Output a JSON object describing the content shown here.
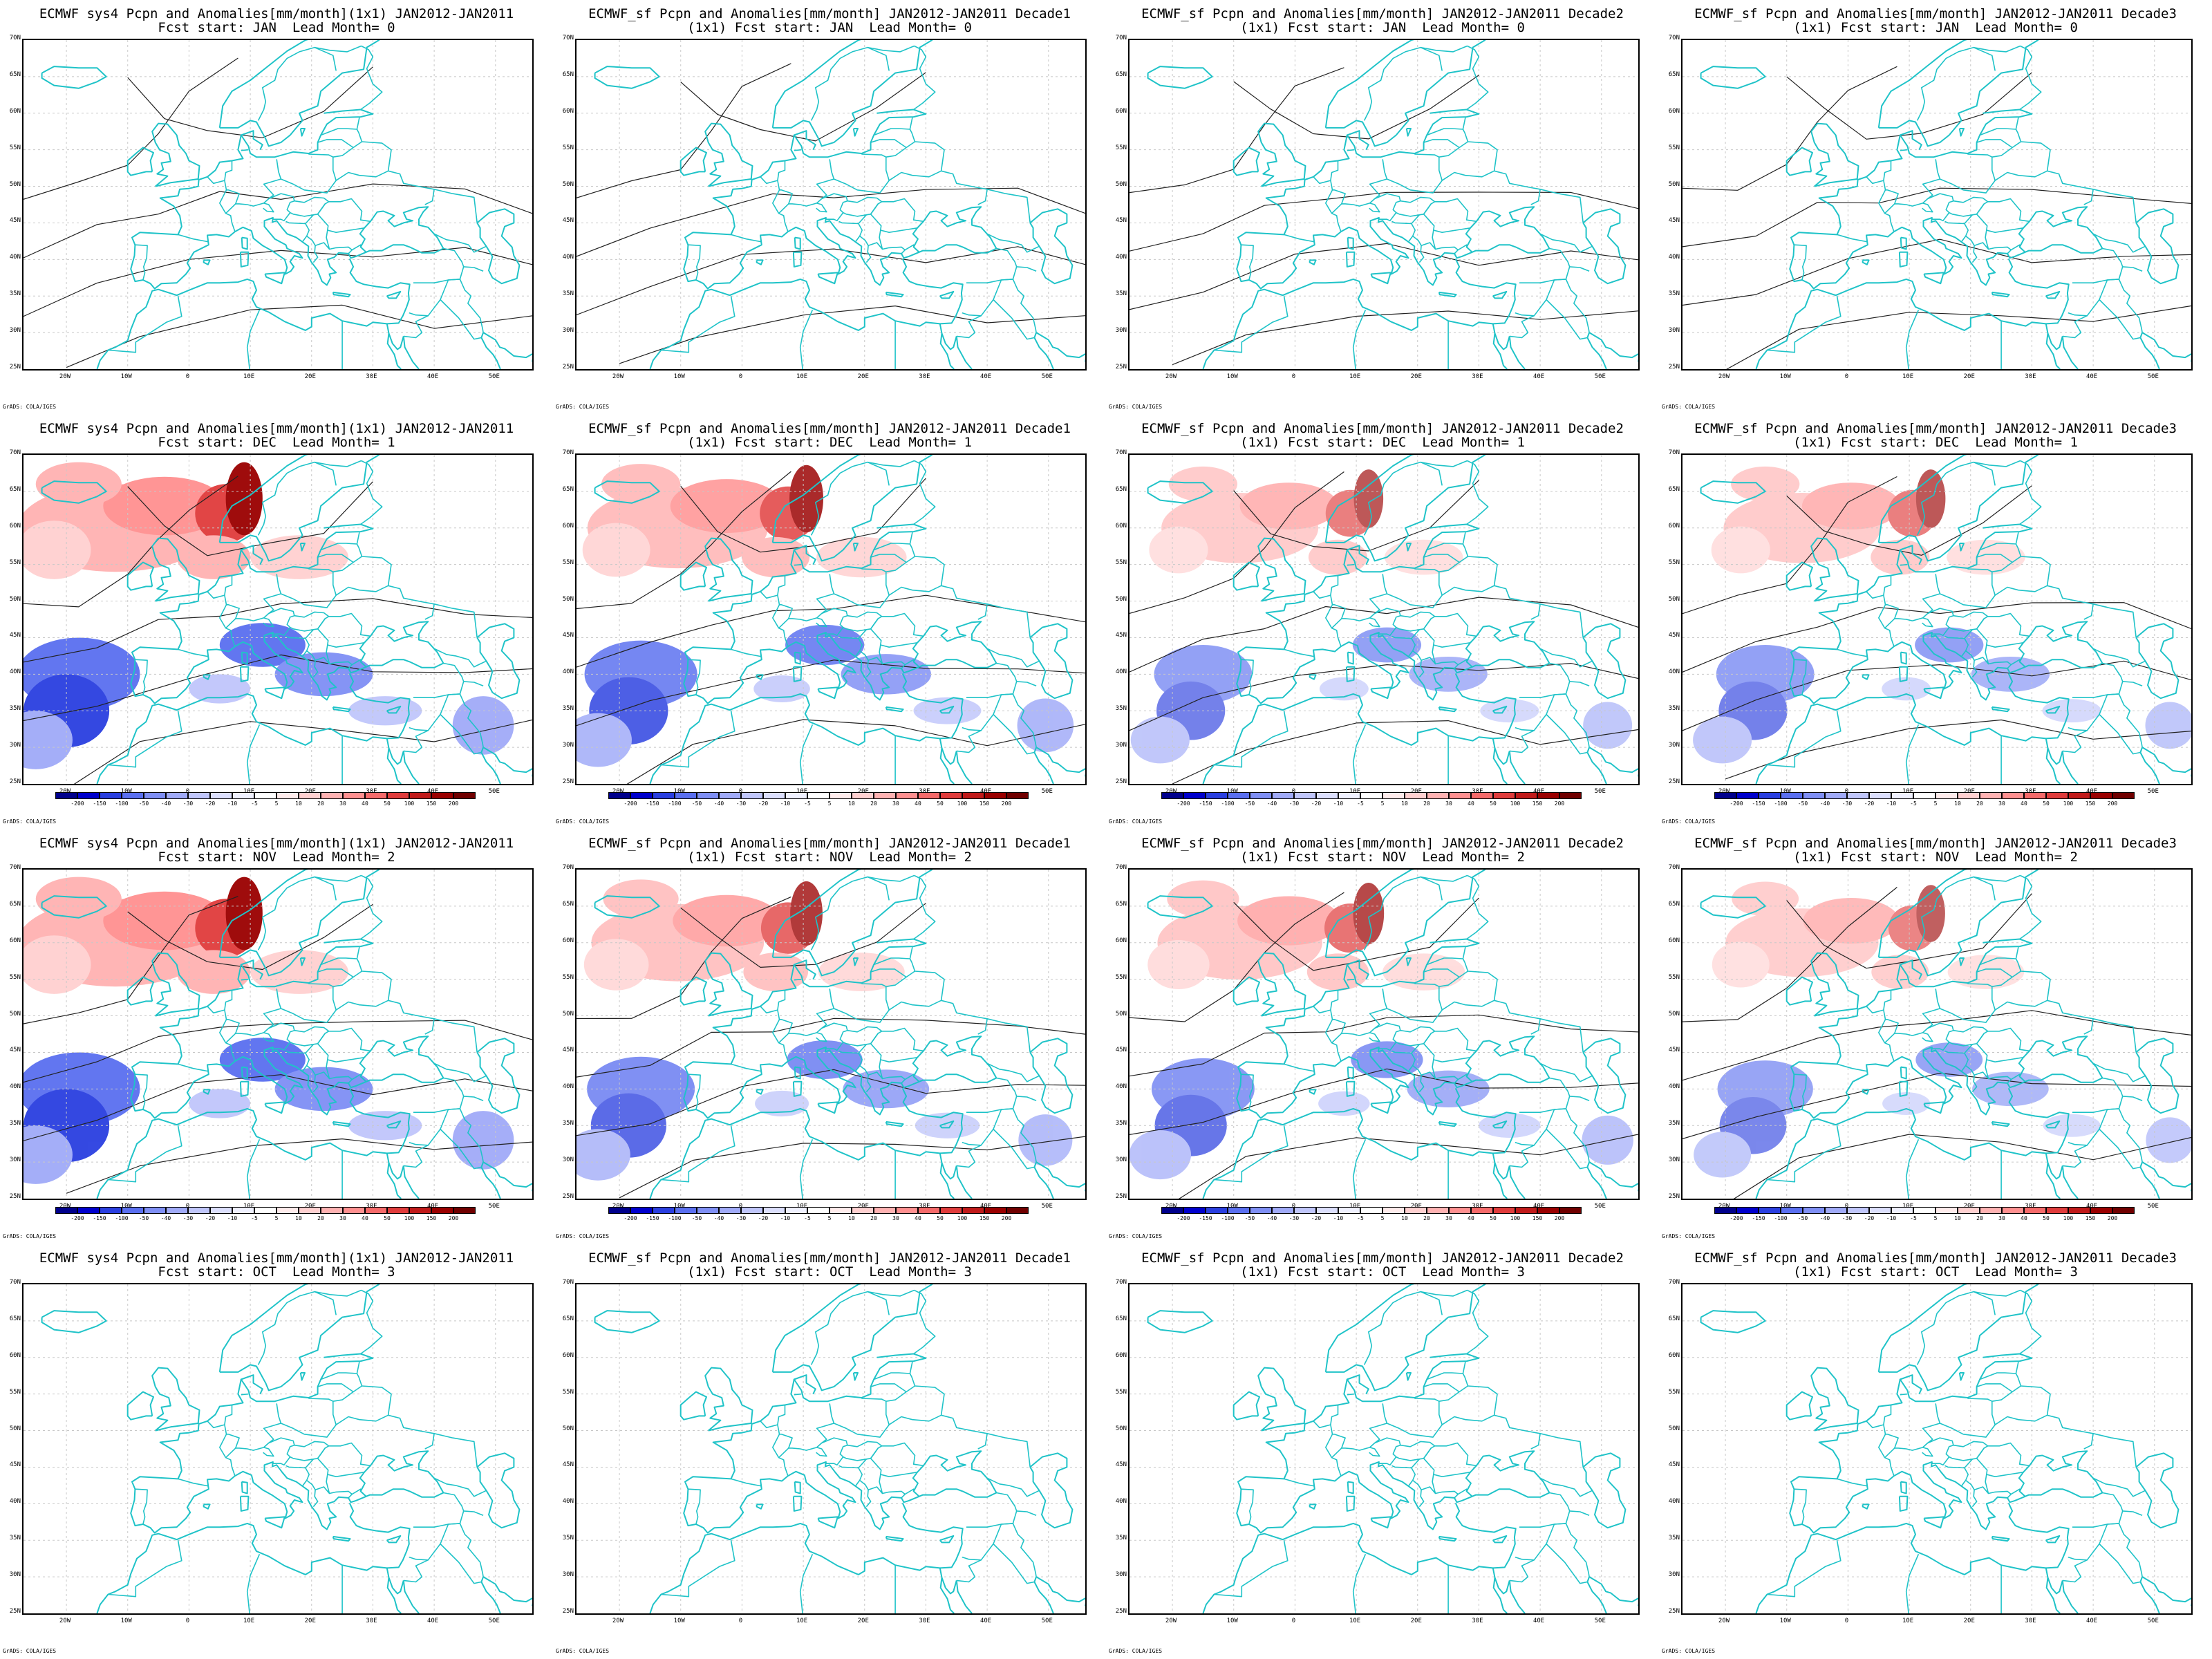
{
  "panels": [
    {
      "title1": "ECMWF sys4 Pcpn and Anomalies[mm/month](1x1) JAN2012-JAN2011",
      "title2": "Fcst start: JAN  Lead Month= 0",
      "shade": 0,
      "colorbar": false
    },
    {
      "title1": "ECMWF_sf Pcpn and Anomalies[mm/month] JAN2012-JAN2011 Decade1",
      "title2": "(1x1) Fcst start: JAN  Lead Month= 0",
      "shade": 0,
      "colorbar": false
    },
    {
      "title1": "ECMWF_sf Pcpn and Anomalies[mm/month] JAN2012-JAN2011 Decade2",
      "title2": "(1x1) Fcst start: JAN  Lead Month= 0",
      "shade": 0,
      "colorbar": false
    },
    {
      "title1": "ECMWF_sf Pcpn and Anomalies[mm/month] JAN2012-JAN2011 Decade3",
      "title2": "(1x1) Fcst start: JAN  Lead Month= 0",
      "shade": 0,
      "colorbar": false
    },
    {
      "title1": "ECMWF sys4 Pcpn and Anomalies[mm/month](1x1) JAN2012-JAN2011",
      "title2": "Fcst start: DEC  Lead Month= 1",
      "shade": 1.0,
      "colorbar": true
    },
    {
      "title1": "ECMWF_sf Pcpn and Anomalies[mm/month] JAN2012-JAN2011 Decade1",
      "title2": "(1x1) Fcst start: DEC  Lead Month= 1",
      "shade": 0.8,
      "colorbar": true
    },
    {
      "title1": "ECMWF_sf Pcpn and Anomalies[mm/month] JAN2012-JAN2011 Decade2",
      "title2": "(1x1) Fcst start: DEC  Lead Month= 1",
      "shade": 0.5,
      "colorbar": true
    },
    {
      "title1": "ECMWF_sf Pcpn and Anomalies[mm/month] JAN2012-JAN2011 Decade3",
      "title2": "(1x1) Fcst start: DEC  Lead Month= 1",
      "shade": 0.5,
      "colorbar": true
    },
    {
      "title1": "ECMWF sys4 Pcpn and Anomalies[mm/month](1x1) JAN2012-JAN2011",
      "title2": "Fcst start: NOV  Lead Month= 2",
      "shade": 1.0,
      "colorbar": true
    },
    {
      "title1": "ECMWF_sf Pcpn and Anomalies[mm/month] JAN2012-JAN2011 Decade1",
      "title2": "(1x1) Fcst start: NOV  Lead Month= 2",
      "shade": 0.7,
      "colorbar": true
    },
    {
      "title1": "ECMWF_sf Pcpn and Anomalies[mm/month] JAN2012-JAN2011 Decade2",
      "title2": "(1x1) Fcst start: NOV  Lead Month= 2",
      "shade": 0.6,
      "colorbar": true
    },
    {
      "title1": "ECMWF_sf Pcpn and Anomalies[mm/month] JAN2012-JAN2011 Decade3",
      "title2": "(1x1) Fcst start: NOV  Lead Month= 2",
      "shade": 0.45,
      "colorbar": true
    },
    {
      "title1": "ECMWF sys4 Pcpn and Anomalies[mm/month](1x1) JAN2012-JAN2011",
      "title2": "Fcst start: OCT  Lead Month= 3",
      "shade": 0,
      "colorbar": false
    },
    {
      "title1": "ECMWF_sf Pcpn and Anomalies[mm/month] JAN2012-JAN2011 Decade1",
      "title2": "(1x1) Fcst start: OCT  Lead Month= 3",
      "shade": 0,
      "colorbar": false
    },
    {
      "title1": "ECMWF_sf Pcpn and Anomalies[mm/month] JAN2012-JAN2011 Decade2",
      "title2": "(1x1) Fcst start: OCT  Lead Month= 3",
      "shade": 0,
      "colorbar": false
    },
    {
      "title1": "ECMWF_sf Pcpn and Anomalies[mm/month] JAN2012-JAN2011 Decade3",
      "title2": "(1x1) Fcst start: OCT  Lead Month= 3",
      "shade": 0,
      "colorbar": false
    }
  ],
  "lat_labels": [
    "70N",
    "65N",
    "60N",
    "55N",
    "50N",
    "45N",
    "40N",
    "35N",
    "30N",
    "25N"
  ],
  "lon_labels": [
    "20W",
    "10W",
    "0",
    "10E",
    "20E",
    "30E",
    "40E",
    "50E"
  ],
  "credit": "GrADS: COLA/IGES",
  "colorbar": {
    "labels": [
      "-200",
      "-150",
      "-100",
      "-50",
      "-40",
      "-30",
      "-20",
      "-10",
      "-5",
      "5",
      "10",
      "20",
      "30",
      "40",
      "50",
      "100",
      "150",
      "200"
    ],
    "colors": [
      "#00008b",
      "#0000cd",
      "#2a3fe0",
      "#5a6ff0",
      "#7f8ff5",
      "#a0aaf8",
      "#c0c6fb",
      "#dcdffd",
      "#f0f1ff",
      "#ffffff",
      "#ffecec",
      "#ffd0d0",
      "#ffb2b2",
      "#ff9090",
      "#f56a6a",
      "#e03c3c",
      "#c01a1a",
      "#9a0000",
      "#700000"
    ]
  },
  "colors": {
    "coast": "#1fc3c8",
    "contour": "#222222",
    "grid": "#c8c8c8"
  }
}
